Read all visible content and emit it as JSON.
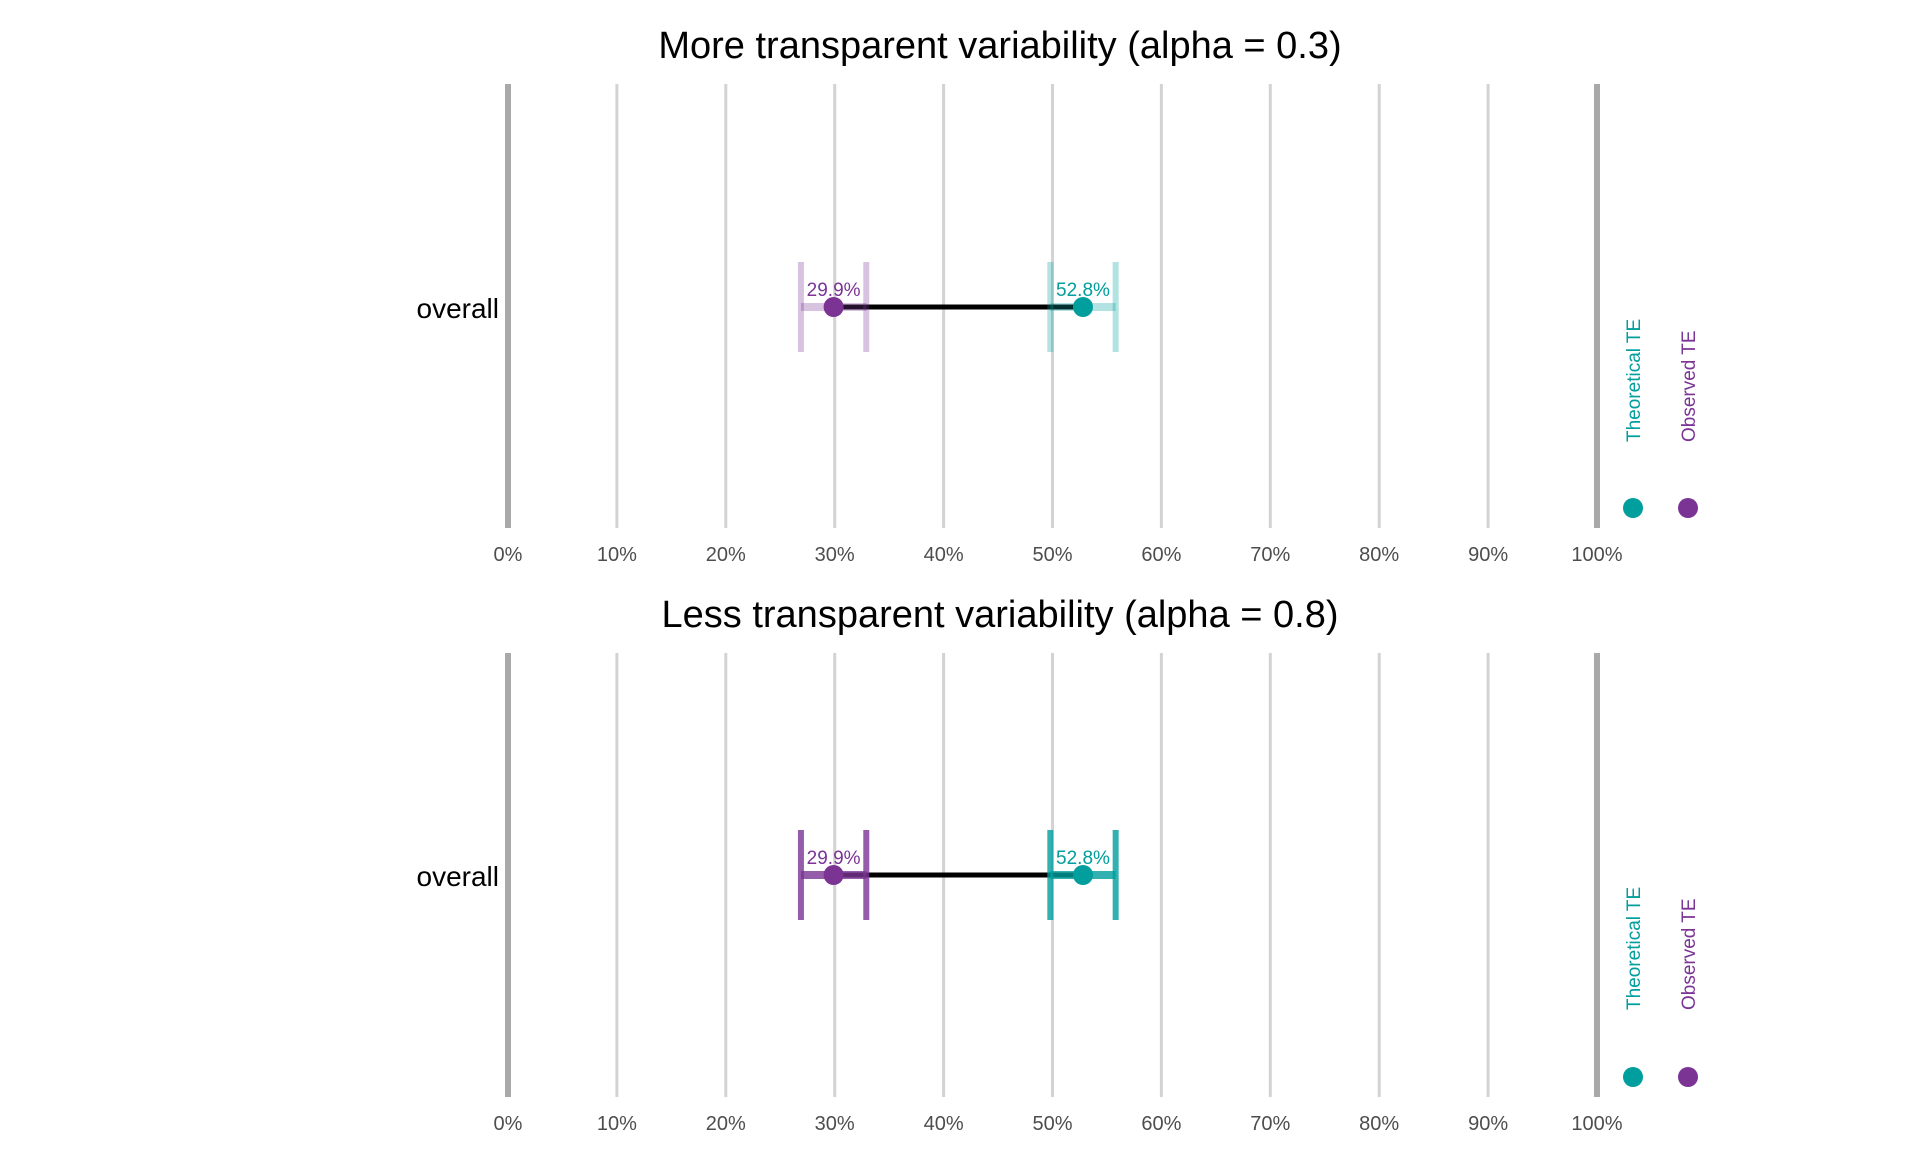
{
  "chart_data": [
    {
      "type": "dumbbell",
      "title": "More transparent variability (alpha = 0.3)",
      "alpha": 0.3,
      "categories": [
        "overall"
      ],
      "x_tick_labels": [
        "0%",
        "10%",
        "20%",
        "30%",
        "40%",
        "50%",
        "60%",
        "70%",
        "80%",
        "90%",
        "100%"
      ],
      "xlim": [
        0,
        100
      ],
      "grid": true,
      "series": [
        {
          "name": "Theoretical TE",
          "color": "#009E9C",
          "values": [
            52.8
          ],
          "labels": [
            "52.8%"
          ],
          "interval": [
            [
              49.8,
              55.8
            ]
          ]
        },
        {
          "name": "Observed TE",
          "color": "#7B3494",
          "values": [
            29.9
          ],
          "labels": [
            "29.9%"
          ],
          "interval": [
            [
              26.9,
              32.9
            ]
          ]
        }
      ],
      "legend_position": "right"
    },
    {
      "type": "dumbbell",
      "title": "Less transparent variability (alpha = 0.8)",
      "alpha": 0.8,
      "categories": [
        "overall"
      ],
      "x_tick_labels": [
        "0%",
        "10%",
        "20%",
        "30%",
        "40%",
        "50%",
        "60%",
        "70%",
        "80%",
        "90%",
        "100%"
      ],
      "xlim": [
        0,
        100
      ],
      "grid": true,
      "series": [
        {
          "name": "Theoretical TE",
          "color": "#009E9C",
          "values": [
            52.8
          ],
          "labels": [
            "52.8%"
          ],
          "interval": [
            [
              49.8,
              55.8
            ]
          ]
        },
        {
          "name": "Observed TE",
          "color": "#7B3494",
          "values": [
            29.9
          ],
          "labels": [
            "29.9%"
          ],
          "interval": [
            [
              26.9,
              32.9
            ]
          ]
        }
      ],
      "legend_position": "right"
    }
  ],
  "colors": {
    "theoretical": "#009E9C",
    "observed": "#7B3494",
    "connector": "#000000",
    "grid": "#D3D3D3",
    "boundary": "#A9A9A9"
  }
}
